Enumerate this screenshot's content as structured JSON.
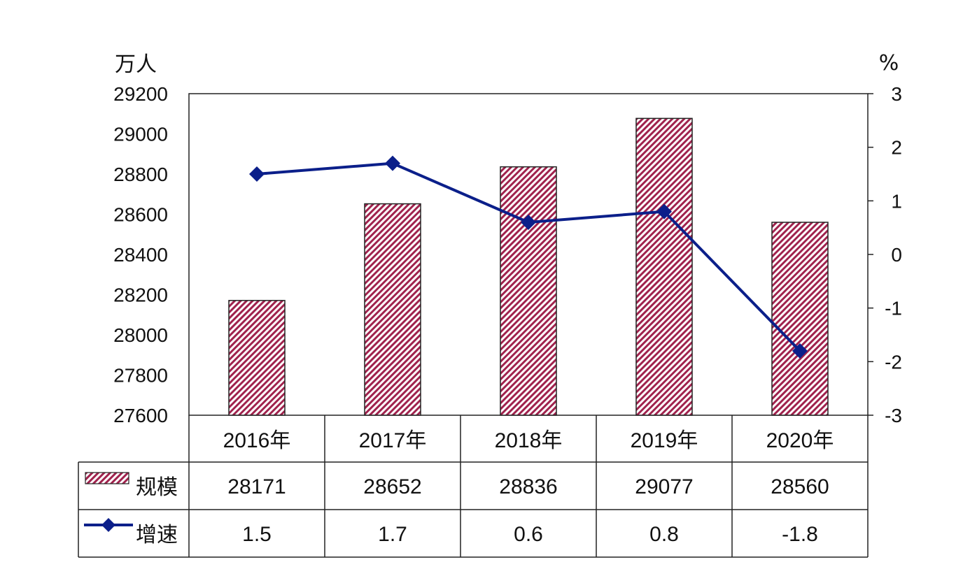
{
  "chart_data": {
    "type": "bar",
    "categories": [
      "2016年",
      "2017年",
      "2018年",
      "2019年",
      "2020年"
    ],
    "series": [
      {
        "name": "规模",
        "type": "bar",
        "axis": "left",
        "values": [
          28171,
          28652,
          28836,
          29077,
          28560
        ],
        "color": "#a0224d",
        "pattern": "diagonal-hatch"
      },
      {
        "name": "增速",
        "type": "line",
        "axis": "right",
        "values": [
          1.5,
          1.7,
          0.6,
          0.8,
          -1.8
        ],
        "color": "#0b1f8a",
        "marker": "diamond"
      }
    ],
    "left_axis": {
      "unit": "万人",
      "min": 27600,
      "max": 29200,
      "step": 200,
      "ticks": [
        "29200",
        "29000",
        "28800",
        "28600",
        "28400",
        "28200",
        "28000",
        "27800",
        "27600"
      ]
    },
    "right_axis": {
      "unit": "%",
      "min": -3,
      "max": 3,
      "step": 1,
      "ticks": [
        "3",
        "2",
        "1",
        "0",
        "-1",
        "-2",
        "-3"
      ]
    },
    "data_table": {
      "rows": [
        {
          "label": "规模",
          "values": [
            "28171",
            "28652",
            "28836",
            "29077",
            "28560"
          ]
        },
        {
          "label": "增速",
          "values": [
            "1.5",
            "1.7",
            "0.6",
            "0.8",
            "-1.8"
          ]
        }
      ]
    },
    "grid": false
  }
}
